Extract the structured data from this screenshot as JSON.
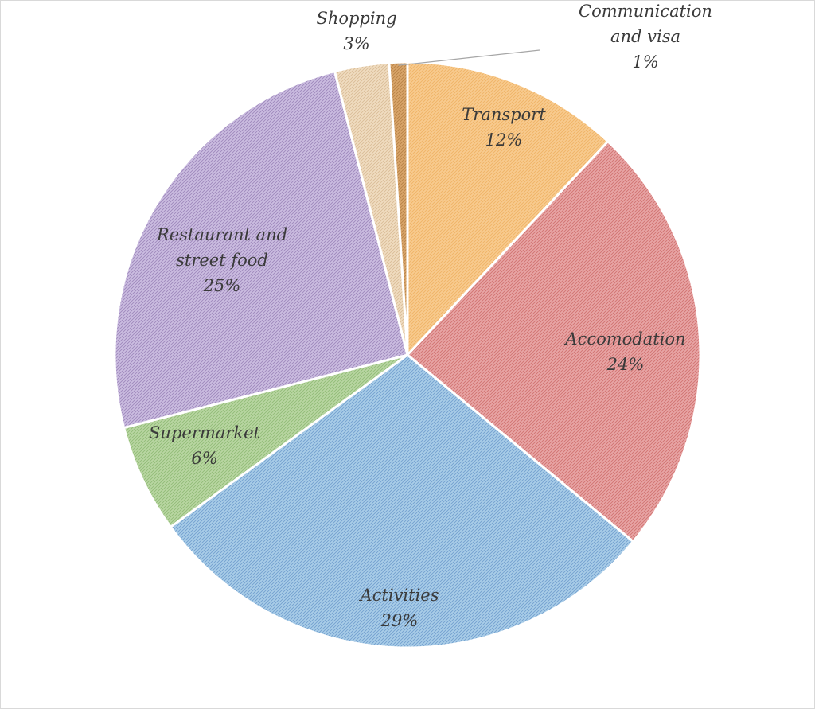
{
  "chart_data": {
    "type": "pie",
    "title": "",
    "slices": [
      {
        "label_lines": [
          "Transport"
        ],
        "percent_text": "12%",
        "value": 12,
        "color": "#f8cb8f",
        "edge": "#e9a24a"
      },
      {
        "label_lines": [
          "Accomodation"
        ],
        "percent_text": "24%",
        "value": 24,
        "color": "#e8a5a5",
        "edge": "#c0504d"
      },
      {
        "label_lines": [
          "Activities"
        ],
        "percent_text": "29%",
        "value": 29,
        "color": "#a9cde8",
        "edge": "#4f81bd"
      },
      {
        "label_lines": [
          "Supermarket"
        ],
        "percent_text": "6%",
        "value": 6,
        "color": "#b9d6a2",
        "edge": "#77a85a"
      },
      {
        "label_lines": [
          "Restaurant and",
          "street food"
        ],
        "percent_text": "25%",
        "value": 25,
        "color": "#cbbde0",
        "edge": "#8064a2"
      },
      {
        "label_lines": [
          "Shopping"
        ],
        "percent_text": "3%",
        "value": 3,
        "color": "#f0dcc0",
        "edge": "#c9a77a"
      },
      {
        "label_lines": [
          "Communication",
          "and visa"
        ],
        "percent_text": "1%",
        "value": 1,
        "color": "#d9a56a",
        "edge": "#a06a2e"
      }
    ]
  }
}
